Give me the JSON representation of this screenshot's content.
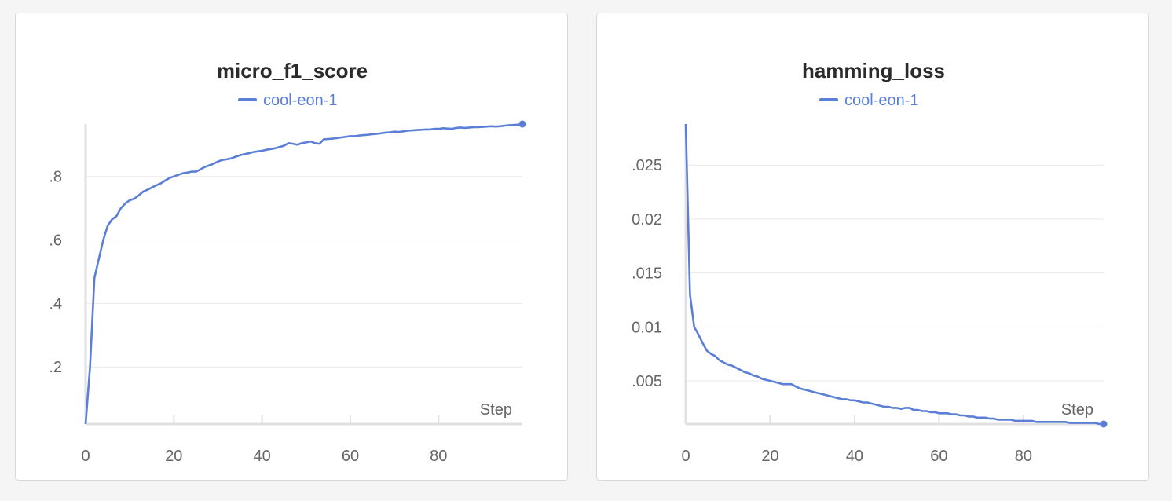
{
  "colors": {
    "series": "#5b7fd6",
    "grid": "#e9e9ea",
    "axis": "#e0e0e2",
    "tick_text": "#666666"
  },
  "chart_data": [
    {
      "type": "line",
      "title": "micro_f1_score",
      "xlabel": "Step",
      "ylabel": "",
      "grid": true,
      "legend_placement": "top-center",
      "xlim": [
        0,
        99
      ],
      "ylim": [
        0.02,
        0.965
      ],
      "x_ticks": [
        0,
        20,
        40,
        60,
        80
      ],
      "x_tick_labels": [
        "0",
        "20",
        "40",
        "60",
        "80"
      ],
      "y_ticks": [
        0.2,
        0.4,
        0.6,
        0.8
      ],
      "y_tick_labels": [
        ".2",
        ".4",
        ".6",
        ".8"
      ],
      "series": [
        {
          "name": "cool-eon-1",
          "x": [
            0,
            1,
            2,
            3,
            4,
            5,
            6,
            7,
            8,
            9,
            10,
            11,
            12,
            13,
            14,
            15,
            16,
            17,
            18,
            19,
            20,
            21,
            22,
            23,
            24,
            25,
            26,
            27,
            28,
            29,
            30,
            31,
            32,
            33,
            34,
            35,
            36,
            37,
            38,
            39,
            40,
            41,
            42,
            43,
            44,
            45,
            46,
            47,
            48,
            49,
            50,
            51,
            52,
            53,
            54,
            55,
            56,
            57,
            58,
            59,
            60,
            61,
            62,
            63,
            64,
            65,
            66,
            67,
            68,
            69,
            70,
            71,
            72,
            73,
            74,
            75,
            76,
            77,
            78,
            79,
            80,
            81,
            82,
            83,
            84,
            85,
            86,
            87,
            88,
            89,
            90,
            91,
            92,
            93,
            94,
            95,
            96,
            97,
            98,
            99
          ],
          "y": [
            0.02,
            0.2,
            0.48,
            0.54,
            0.6,
            0.645,
            0.665,
            0.675,
            0.7,
            0.715,
            0.725,
            0.73,
            0.74,
            0.752,
            0.758,
            0.765,
            0.772,
            0.778,
            0.787,
            0.795,
            0.8,
            0.805,
            0.81,
            0.812,
            0.815,
            0.815,
            0.822,
            0.83,
            0.835,
            0.84,
            0.847,
            0.852,
            0.854,
            0.857,
            0.862,
            0.867,
            0.87,
            0.873,
            0.877,
            0.879,
            0.881,
            0.884,
            0.886,
            0.889,
            0.893,
            0.897,
            0.905,
            0.903,
            0.9,
            0.905,
            0.907,
            0.91,
            0.905,
            0.903,
            0.917,
            0.918,
            0.919,
            0.921,
            0.923,
            0.925,
            0.927,
            0.927,
            0.929,
            0.93,
            0.931,
            0.933,
            0.934,
            0.936,
            0.938,
            0.939,
            0.941,
            0.94,
            0.942,
            0.944,
            0.945,
            0.946,
            0.947,
            0.948,
            0.948,
            0.95,
            0.95,
            0.952,
            0.951,
            0.95,
            0.953,
            0.954,
            0.953,
            0.954,
            0.955,
            0.955,
            0.956,
            0.957,
            0.958,
            0.957,
            0.958,
            0.96,
            0.961,
            0.962,
            0.963,
            0.965
          ]
        }
      ]
    },
    {
      "type": "line",
      "title": "hamming_loss",
      "xlabel": "Step",
      "ylabel": "",
      "grid": true,
      "legend_placement": "top-center",
      "xlim": [
        0,
        99
      ],
      "ylim": [
        0.001,
        0.0288
      ],
      "x_ticks": [
        0,
        20,
        40,
        60,
        80
      ],
      "x_tick_labels": [
        "0",
        "20",
        "40",
        "60",
        "80"
      ],
      "y_ticks": [
        0.005,
        0.01,
        0.015,
        0.02,
        0.025
      ],
      "y_tick_labels": [
        ".005",
        "0.01",
        ".015",
        "0.02",
        ".025"
      ],
      "series": [
        {
          "name": "cool-eon-1",
          "x": [
            0,
            1,
            2,
            3,
            4,
            5,
            6,
            7,
            8,
            9,
            10,
            11,
            12,
            13,
            14,
            15,
            16,
            17,
            18,
            19,
            20,
            21,
            22,
            23,
            24,
            25,
            26,
            27,
            28,
            29,
            30,
            31,
            32,
            33,
            34,
            35,
            36,
            37,
            38,
            39,
            40,
            41,
            42,
            43,
            44,
            45,
            46,
            47,
            48,
            49,
            50,
            51,
            52,
            53,
            54,
            55,
            56,
            57,
            58,
            59,
            60,
            61,
            62,
            63,
            64,
            65,
            66,
            67,
            68,
            69,
            70,
            71,
            72,
            73,
            74,
            75,
            76,
            77,
            78,
            79,
            80,
            81,
            82,
            83,
            84,
            85,
            86,
            87,
            88,
            89,
            90,
            91,
            92,
            93,
            94,
            95,
            96,
            97,
            98,
            99
          ],
          "y": [
            0.0288,
            0.013,
            0.01,
            0.0093,
            0.0085,
            0.0078,
            0.0075,
            0.0073,
            0.0069,
            0.0067,
            0.0065,
            0.0064,
            0.0062,
            0.006,
            0.0058,
            0.0057,
            0.0055,
            0.0054,
            0.0052,
            0.0051,
            0.005,
            0.0049,
            0.0048,
            0.0047,
            0.0047,
            0.0047,
            0.0045,
            0.0043,
            0.0042,
            0.0041,
            0.004,
            0.0039,
            0.0038,
            0.0037,
            0.0036,
            0.0035,
            0.0034,
            0.0033,
            0.0033,
            0.0032,
            0.0032,
            0.0031,
            0.003,
            0.003,
            0.0029,
            0.0028,
            0.0027,
            0.0026,
            0.0026,
            0.0025,
            0.0025,
            0.0024,
            0.0025,
            0.0025,
            0.0023,
            0.0023,
            0.0022,
            0.0022,
            0.0021,
            0.0021,
            0.002,
            0.002,
            0.002,
            0.0019,
            0.0019,
            0.0018,
            0.0018,
            0.0017,
            0.0017,
            0.0016,
            0.0016,
            0.0016,
            0.0015,
            0.0015,
            0.0014,
            0.0014,
            0.0014,
            0.0014,
            0.0013,
            0.0013,
            0.0013,
            0.0013,
            0.0013,
            0.0012,
            0.0012,
            0.0012,
            0.0012,
            0.0012,
            0.0012,
            0.0012,
            0.0012,
            0.0011,
            0.0011,
            0.0011,
            0.0011,
            0.0011,
            0.0011,
            0.0011,
            0.001,
            0.001
          ]
        }
      ]
    }
  ]
}
